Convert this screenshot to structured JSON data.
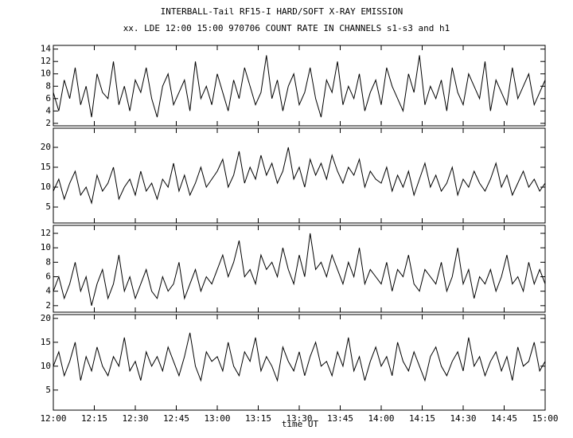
{
  "title": "INTERBALL-Tail RF15-I HARD/SOFT X-RAY EMISSION",
  "subtitle": "xx. LDE 12:00 15:00 970706  COUNT RATE IN CHANNELS s1-s3 and h1",
  "chart_data": [
    {
      "type": "line",
      "color": "#000000",
      "x": [
        720,
        722,
        724,
        726,
        728,
        730,
        732,
        734,
        736,
        738,
        740,
        742,
        744,
        746,
        748,
        750,
        752,
        754,
        756,
        758,
        760,
        762,
        764,
        766,
        768,
        770,
        772,
        774,
        776,
        778,
        780,
        782,
        784,
        786,
        788,
        790,
        792,
        794,
        796,
        798,
        800,
        802,
        804,
        806,
        808,
        810,
        812,
        814,
        816,
        818,
        820,
        822,
        824,
        826,
        828,
        830,
        832,
        834,
        836,
        838,
        840,
        842,
        844,
        846,
        848,
        850,
        852,
        854,
        856,
        858,
        860,
        862,
        864,
        866,
        868,
        870,
        872,
        874,
        876,
        878,
        880,
        882,
        884,
        886,
        888,
        890,
        892,
        894,
        896,
        898,
        900
      ],
      "values": [
        7,
        4,
        9,
        6,
        11,
        5,
        8,
        3,
        10,
        7,
        6,
        12,
        5,
        8,
        4,
        9,
        7,
        11,
        6,
        3,
        8,
        10,
        5,
        7,
        9,
        4,
        12,
        6,
        8,
        5,
        10,
        7,
        4,
        9,
        6,
        11,
        8,
        5,
        7,
        13,
        6,
        9,
        4,
        8,
        10,
        5,
        7,
        11,
        6,
        3,
        9,
        7,
        12,
        5,
        8,
        6,
        10,
        4,
        7,
        9,
        5,
        11,
        8,
        6,
        4,
        10,
        7,
        13,
        5,
        8,
        6,
        9,
        4,
        11,
        7,
        5,
        10,
        8,
        6,
        12,
        4,
        9,
        7,
        5,
        11,
        6,
        8,
        10,
        5,
        7,
        9
      ],
      "xlim": [
        720,
        900
      ],
      "ylim": [
        1.6,
        14.6
      ],
      "yticks": [
        2,
        4,
        6,
        8,
        10,
        12,
        14
      ]
    },
    {
      "type": "line",
      "color": "#000000",
      "x": [
        720,
        722,
        724,
        726,
        728,
        730,
        732,
        734,
        736,
        738,
        740,
        742,
        744,
        746,
        748,
        750,
        752,
        754,
        756,
        758,
        760,
        762,
        764,
        766,
        768,
        770,
        772,
        774,
        776,
        778,
        780,
        782,
        784,
        786,
        788,
        790,
        792,
        794,
        796,
        798,
        800,
        802,
        804,
        806,
        808,
        810,
        812,
        814,
        816,
        818,
        820,
        822,
        824,
        826,
        828,
        830,
        832,
        834,
        836,
        838,
        840,
        842,
        844,
        846,
        848,
        850,
        852,
        854,
        856,
        858,
        860,
        862,
        864,
        866,
        868,
        870,
        872,
        874,
        876,
        878,
        880,
        882,
        884,
        886,
        888,
        890,
        892,
        894,
        896,
        898,
        900
      ],
      "values": [
        9,
        12,
        7,
        11,
        14,
        8,
        10,
        6,
        13,
        9,
        11,
        15,
        7,
        10,
        12,
        8,
        14,
        9,
        11,
        7,
        12,
        10,
        16,
        9,
        13,
        8,
        11,
        15,
        10,
        12,
        14,
        17,
        10,
        13,
        19,
        11,
        15,
        12,
        18,
        13,
        16,
        11,
        14,
        20,
        12,
        15,
        10,
        17,
        13,
        16,
        12,
        18,
        14,
        11,
        15,
        13,
        17,
        10,
        14,
        12,
        11,
        15,
        9,
        13,
        10,
        14,
        8,
        12,
        16,
        10,
        13,
        9,
        11,
        15,
        8,
        12,
        10,
        14,
        11,
        9,
        12,
        16,
        10,
        13,
        8,
        11,
        14,
        10,
        12,
        9,
        11
      ],
      "xlim": [
        720,
        900
      ],
      "ylim": [
        1,
        24.8
      ],
      "yticks": [
        5,
        10,
        15,
        20
      ]
    },
    {
      "type": "line",
      "color": "#000000",
      "x": [
        720,
        722,
        724,
        726,
        728,
        730,
        732,
        734,
        736,
        738,
        740,
        742,
        744,
        746,
        748,
        750,
        752,
        754,
        756,
        758,
        760,
        762,
        764,
        766,
        768,
        770,
        772,
        774,
        776,
        778,
        780,
        782,
        784,
        786,
        788,
        790,
        792,
        794,
        796,
        798,
        800,
        802,
        804,
        806,
        808,
        810,
        812,
        814,
        816,
        818,
        820,
        822,
        824,
        826,
        828,
        830,
        832,
        834,
        836,
        838,
        840,
        842,
        844,
        846,
        848,
        850,
        852,
        854,
        856,
        858,
        860,
        862,
        864,
        866,
        868,
        870,
        872,
        874,
        876,
        878,
        880,
        882,
        884,
        886,
        888,
        890,
        892,
        894,
        896,
        898,
        900
      ],
      "values": [
        4,
        6,
        3,
        5,
        8,
        4,
        6,
        2,
        5,
        7,
        3,
        5,
        9,
        4,
        6,
        3,
        5,
        7,
        4,
        3,
        6,
        4,
        5,
        8,
        3,
        5,
        7,
        4,
        6,
        5,
        7,
        9,
        6,
        8,
        11,
        6,
        7,
        5,
        9,
        7,
        8,
        6,
        10,
        7,
        5,
        9,
        6,
        12,
        7,
        8,
        6,
        9,
        7,
        5,
        8,
        6,
        10,
        5,
        7,
        6,
        5,
        8,
        4,
        7,
        6,
        9,
        5,
        4,
        7,
        6,
        5,
        8,
        4,
        6,
        10,
        5,
        7,
        3,
        6,
        5,
        7,
        4,
        6,
        9,
        5,
        6,
        4,
        8,
        5,
        7,
        5
      ],
      "xlim": [
        720,
        900
      ],
      "ylim": [
        1.1,
        13.1
      ],
      "yticks": [
        2,
        4,
        6,
        8,
        10,
        12
      ]
    },
    {
      "type": "line",
      "color": "#000000",
      "xlabel": "time UT",
      "x": [
        720,
        722,
        724,
        726,
        728,
        730,
        732,
        734,
        736,
        738,
        740,
        742,
        744,
        746,
        748,
        750,
        752,
        754,
        756,
        758,
        760,
        762,
        764,
        766,
        768,
        770,
        772,
        774,
        776,
        778,
        780,
        782,
        784,
        786,
        788,
        790,
        792,
        794,
        796,
        798,
        800,
        802,
        804,
        806,
        808,
        810,
        812,
        814,
        816,
        818,
        820,
        822,
        824,
        826,
        828,
        830,
        832,
        834,
        836,
        838,
        840,
        842,
        844,
        846,
        848,
        850,
        852,
        854,
        856,
        858,
        860,
        862,
        864,
        866,
        868,
        870,
        872,
        874,
        876,
        878,
        880,
        882,
        884,
        886,
        888,
        890,
        892,
        894,
        896,
        898,
        900
      ],
      "values": [
        10,
        13,
        8,
        11,
        15,
        7,
        12,
        9,
        14,
        10,
        8,
        12,
        10,
        16,
        9,
        11,
        7,
        13,
        10,
        12,
        9,
        14,
        11,
        8,
        12,
        17,
        10,
        7,
        13,
        11,
        12,
        9,
        15,
        10,
        8,
        13,
        11,
        16,
        9,
        12,
        10,
        7,
        14,
        11,
        9,
        13,
        8,
        12,
        15,
        10,
        11,
        8,
        13,
        10,
        16,
        9,
        12,
        7,
        11,
        14,
        10,
        12,
        8,
        15,
        11,
        9,
        13,
        10,
        7,
        12,
        14,
        10,
        8,
        11,
        13,
        9,
        16,
        10,
        12,
        8,
        11,
        13,
        9,
        12,
        7,
        14,
        10,
        11,
        15,
        9,
        11
      ],
      "xlim": [
        720,
        900
      ],
      "ylim": [
        0.8,
        20.8
      ],
      "yticks": [
        5,
        10,
        15,
        20
      ],
      "xticks": [
        {
          "value": 720,
          "label": "12:00"
        },
        {
          "value": 735,
          "label": "12:15"
        },
        {
          "value": 750,
          "label": "12:30"
        },
        {
          "value": 765,
          "label": "12:45"
        },
        {
          "value": 780,
          "label": "13:00"
        },
        {
          "value": 795,
          "label": "13:15"
        },
        {
          "value": 810,
          "label": "13:30"
        },
        {
          "value": 825,
          "label": "13:45"
        },
        {
          "value": 840,
          "label": "14:00"
        },
        {
          "value": 855,
          "label": "14:15"
        },
        {
          "value": 870,
          "label": "14:30"
        },
        {
          "value": 885,
          "label": "14:45"
        },
        {
          "value": 900,
          "label": "15:00"
        }
      ]
    }
  ]
}
